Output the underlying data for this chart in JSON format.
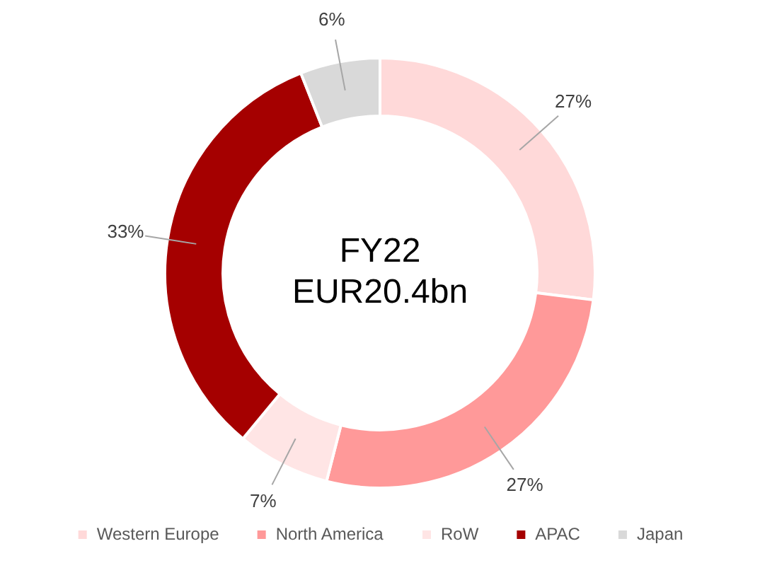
{
  "chart_data": {
    "type": "donut",
    "categories": [
      "Western Europe",
      "North America",
      "RoW",
      "APAC",
      "Japan"
    ],
    "values": [
      27,
      27,
      7,
      33,
      6
    ],
    "colors": [
      "#ffd9d9",
      "#ff9999",
      "#ffe5e5",
      "#a50000",
      "#d9d9d9"
    ],
    "value_labels": [
      "27%",
      "27%",
      "7%",
      "33%",
      "6%"
    ],
    "annotations": [
      "FY22",
      "EUR20.4bn"
    ],
    "legend": "bottom"
  }
}
